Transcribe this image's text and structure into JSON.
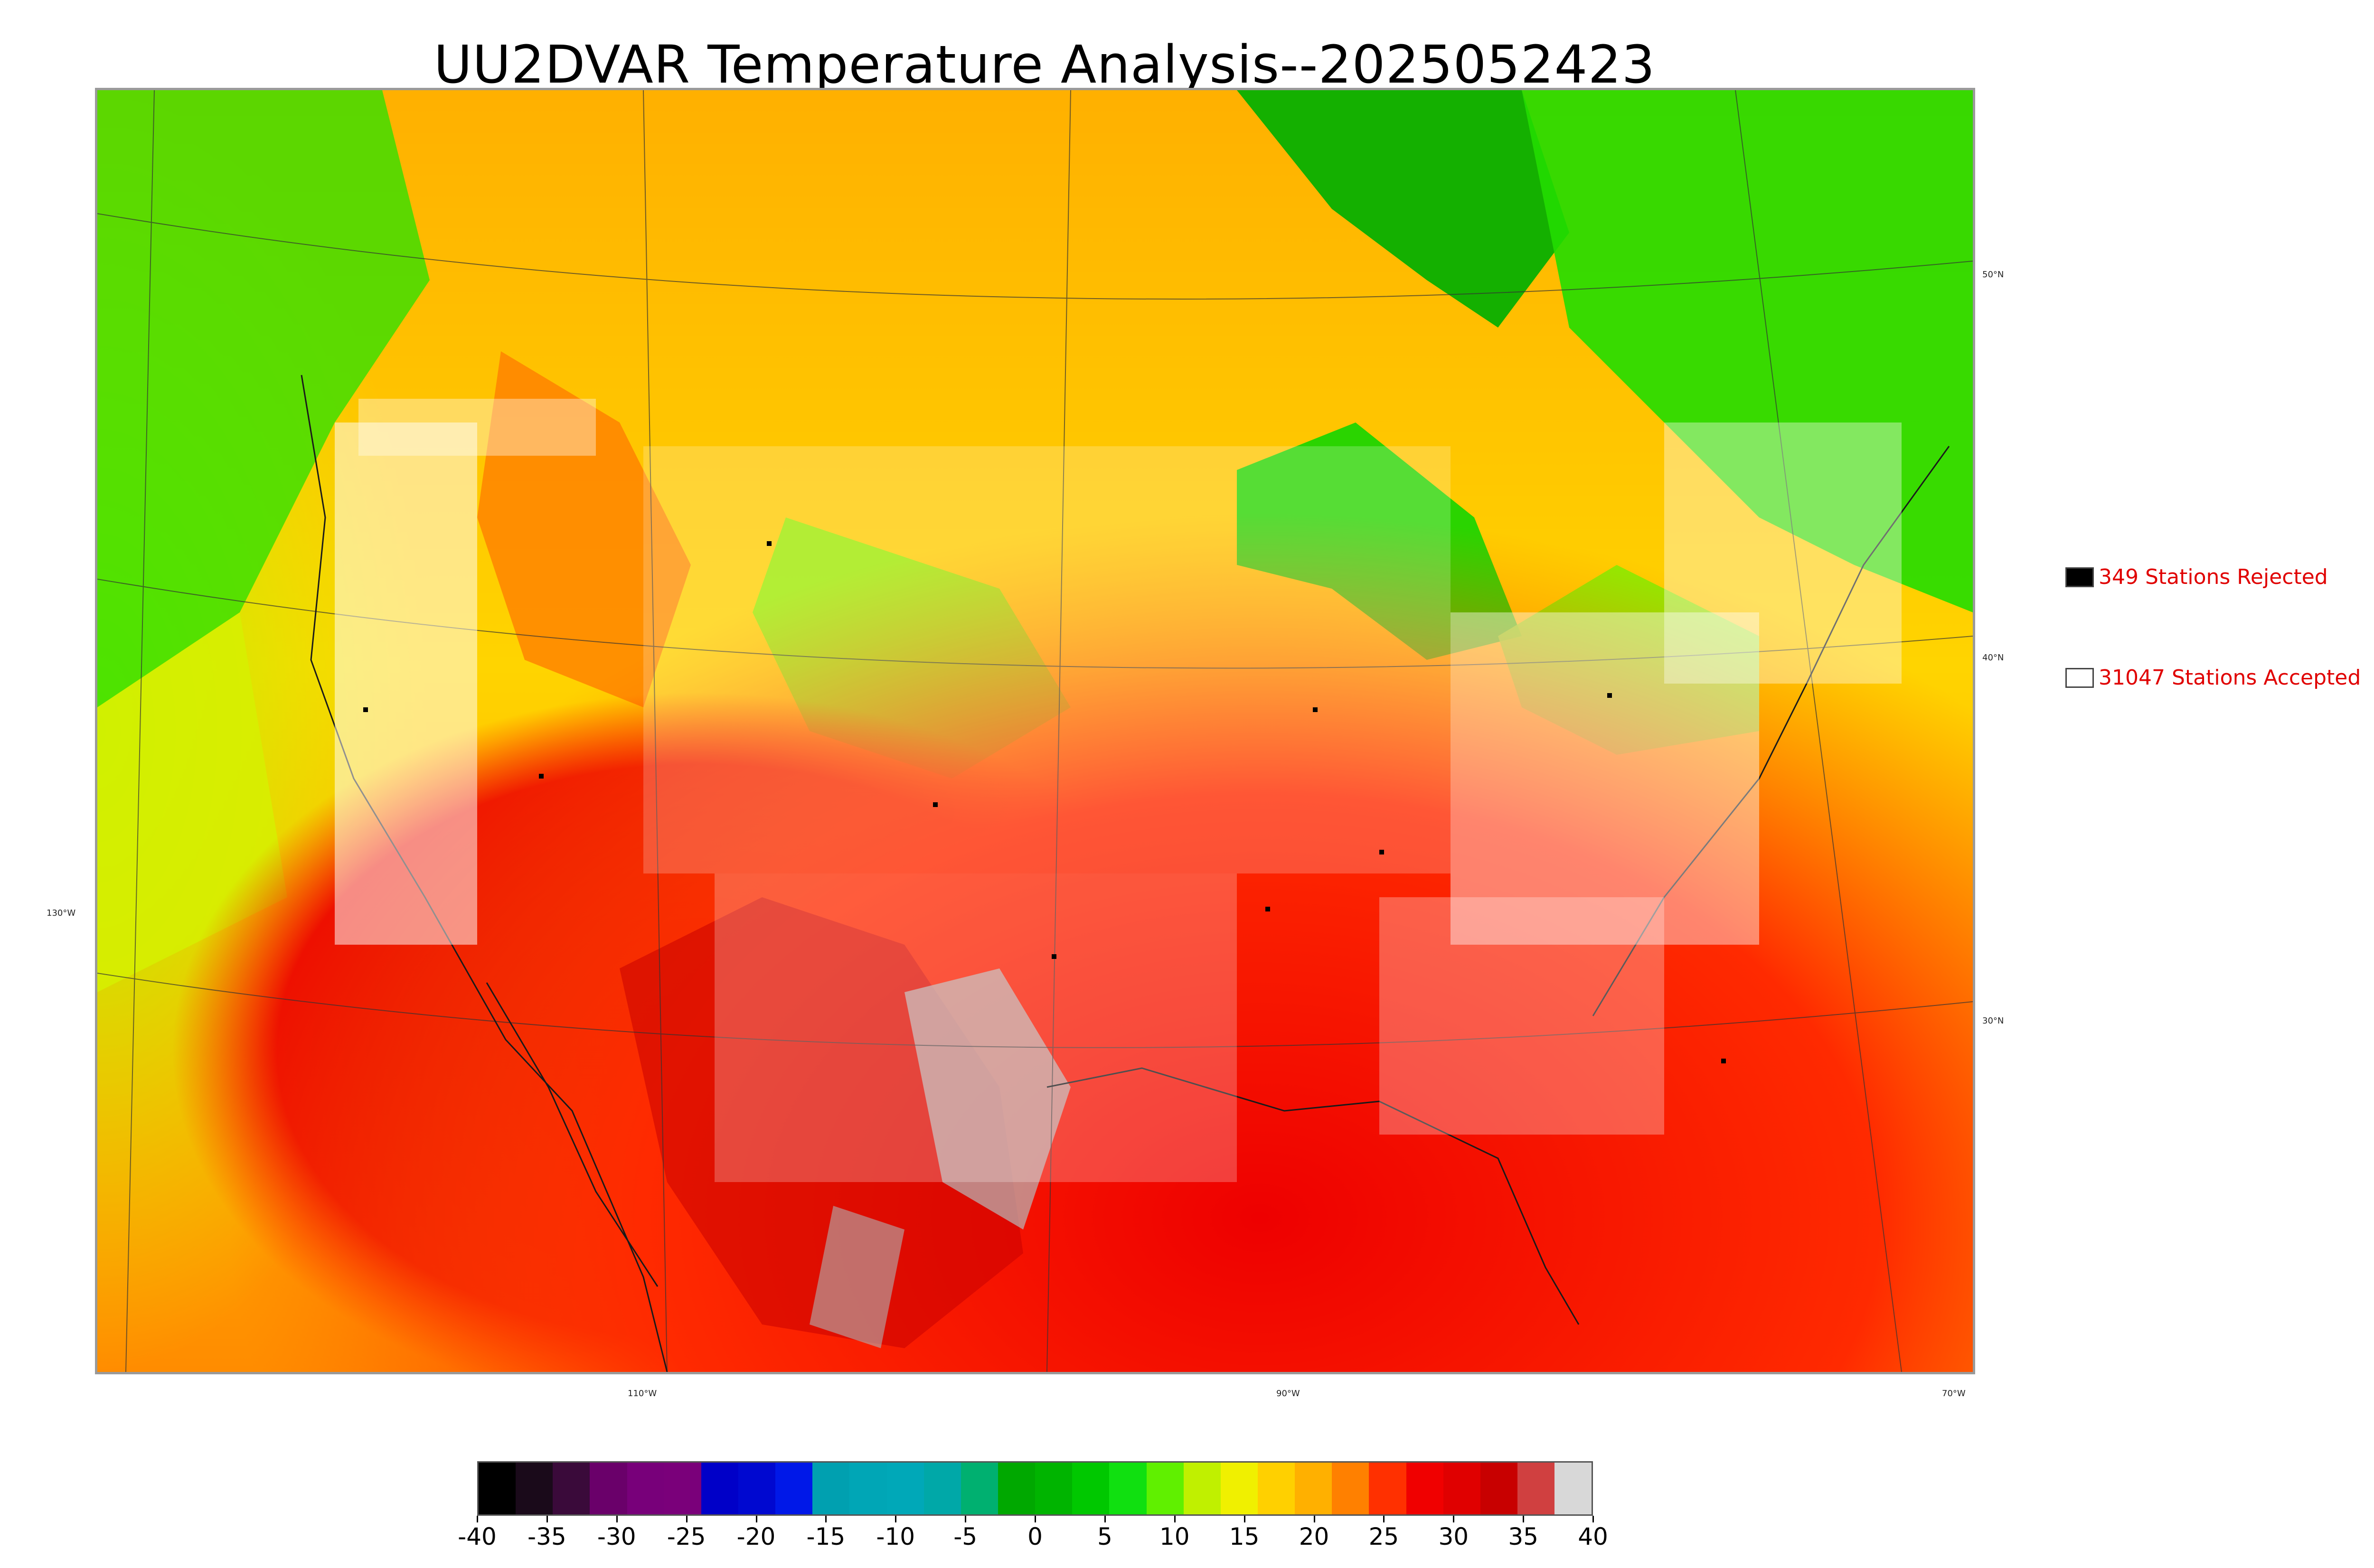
{
  "title": "UU2DVAR Temperature Analysis--2025052423",
  "legend": {
    "rejected": {
      "label": "349 Stations Rejected",
      "swatch_color": "#000000"
    },
    "accepted": {
      "label": "31047 Stations Accepted",
      "swatch_color": "#ffffff"
    }
  },
  "graticule_labels": {
    "lat": [
      "50°N",
      "40°N",
      "30°N"
    ],
    "lon_left": "130°W",
    "lon_bottom": [
      "110°W",
      "90°W",
      "70°W"
    ]
  },
  "colorbar": {
    "ticks": [
      "-40",
      "-35",
      "-30",
      "-25",
      "-20",
      "-15",
      "-10",
      "-5",
      "0",
      "5",
      "10",
      "15",
      "20",
      "25",
      "30",
      "35",
      "40"
    ],
    "colors": [
      "#000000",
      "#1a0a1a",
      "#3a0a3a",
      "#6a006a",
      "#78007a",
      "#7a007a",
      "#0000c8",
      "#0008d0",
      "#0018e8",
      "#00a0b0",
      "#00a6b6",
      "#00a8b8",
      "#00a8a8",
      "#00b070",
      "#00a800",
      "#00b400",
      "#00c800",
      "#10e010",
      "#60f000",
      "#c0f000",
      "#f0f000",
      "#ffd000",
      "#ffb000",
      "#ff8000",
      "#ff3000",
      "#f00000",
      "#e00000",
      "#c80000",
      "#d04040",
      "#d8d8d8"
    ]
  }
}
